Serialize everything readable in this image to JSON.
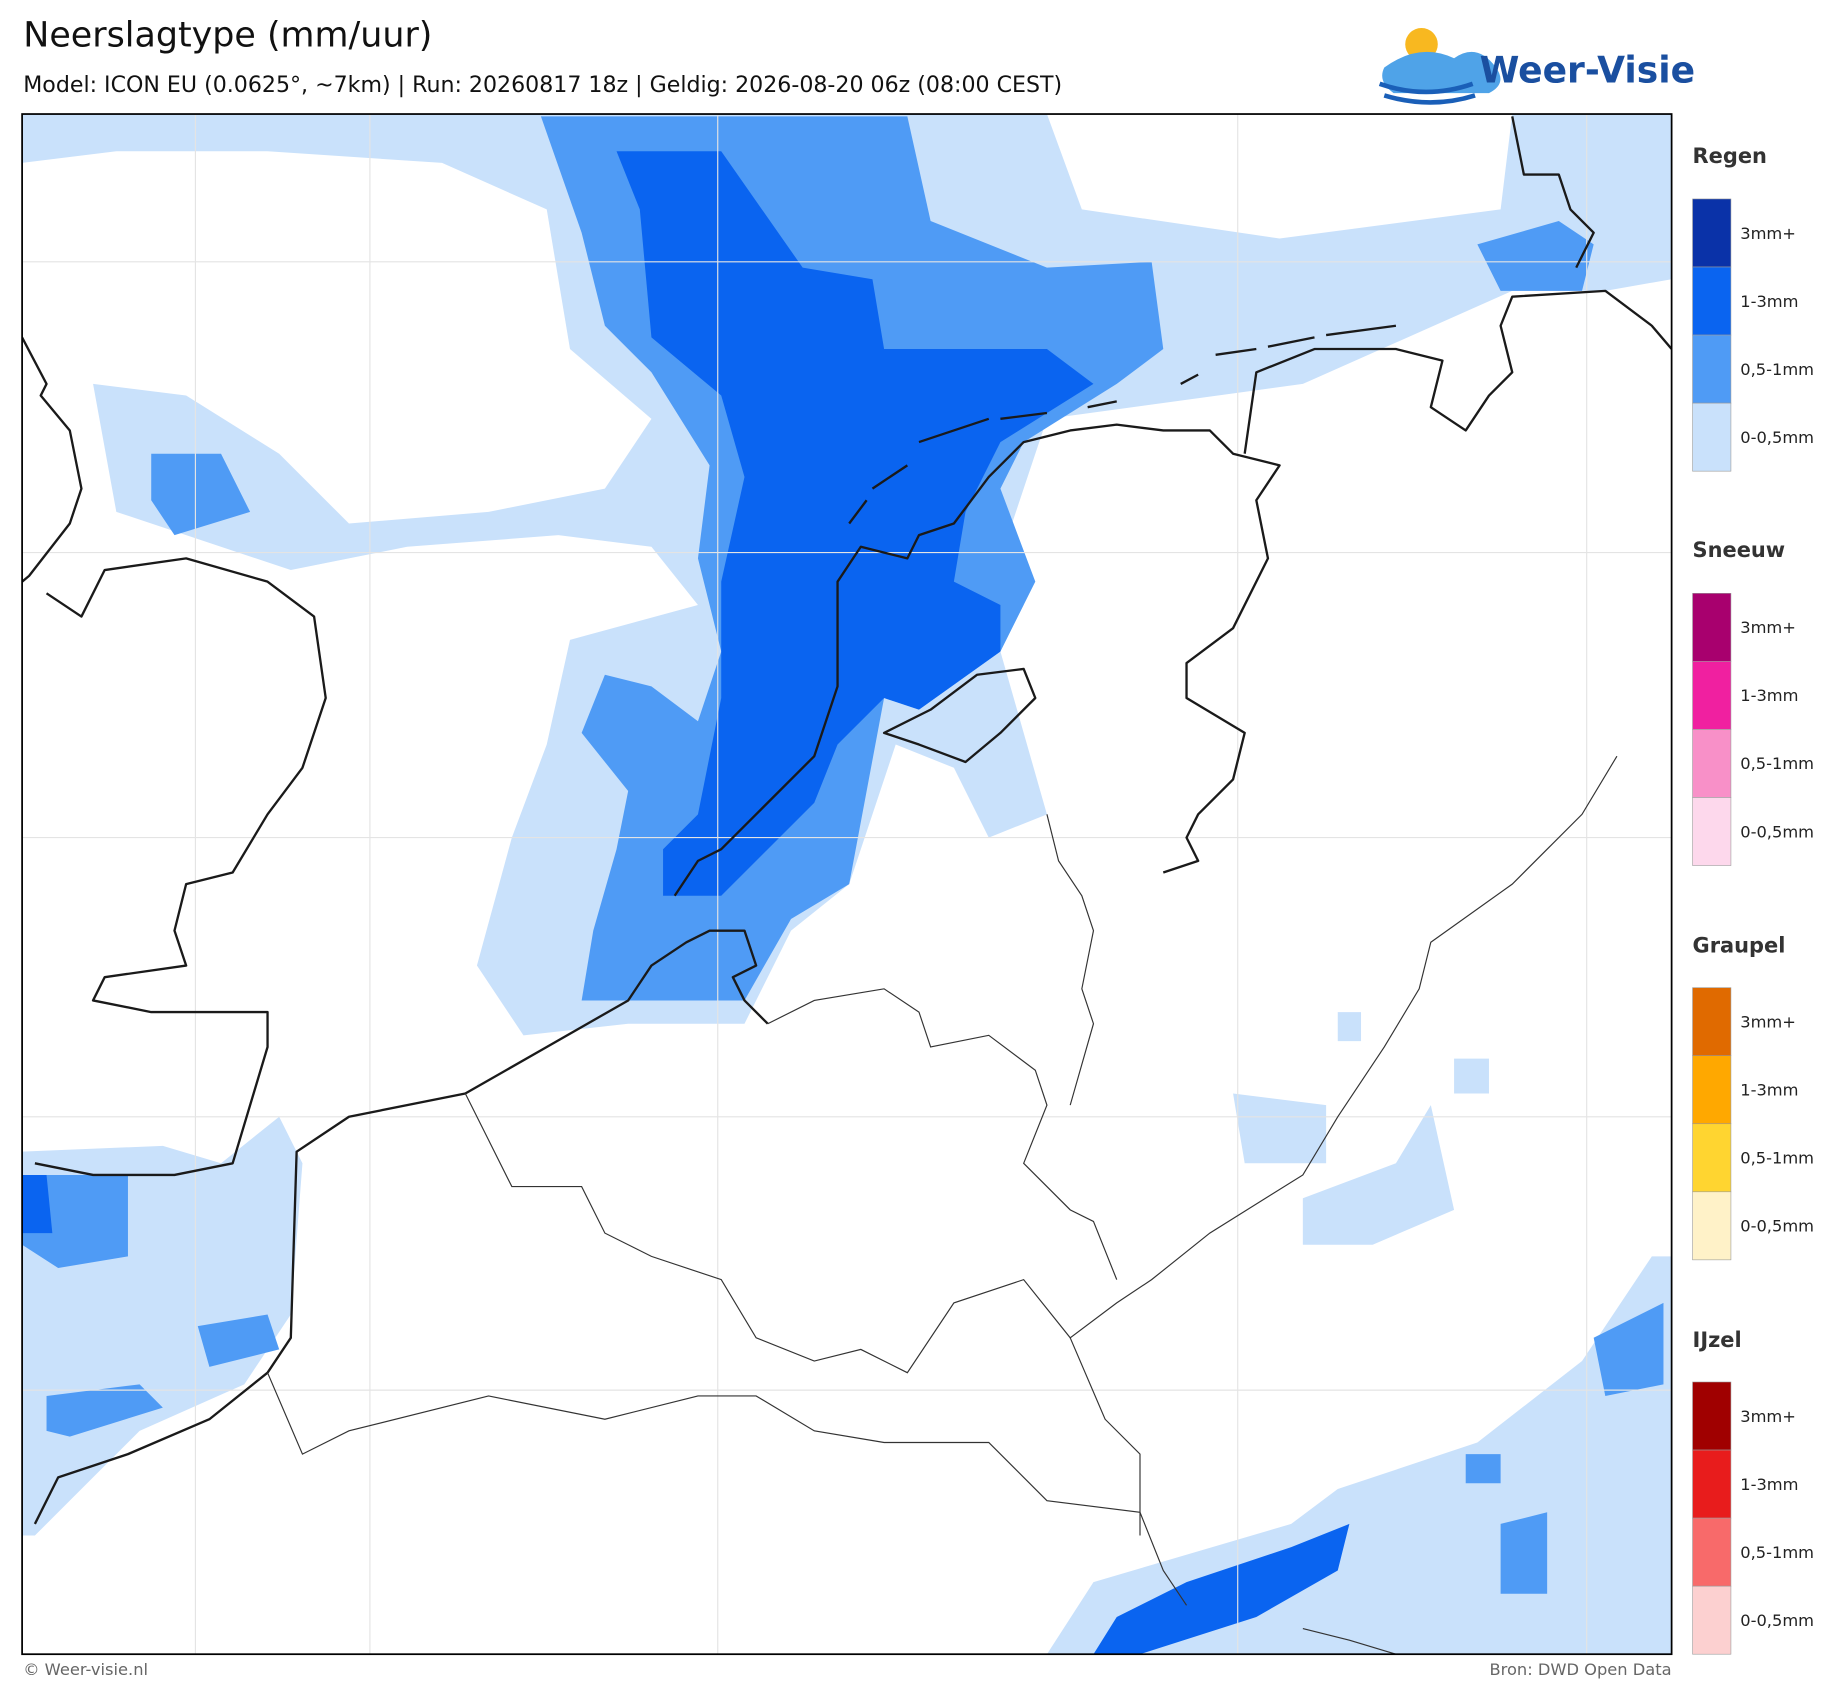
{
  "header": {
    "title": "Neerslagtype (mm/uur)",
    "subtitle": "Model: ICON EU (0.0625°, ~7km)  |  Run: 20260817 18z  |  Geldig: 2026-08-20 06z (08:00 CEST)",
    "logo": "Weer-Visie"
  },
  "legend": [
    {
      "title": "Regen",
      "items": [
        {
          "label": "3mm+",
          "color": "#0a32a8"
        },
        {
          "label": "1-3mm",
          "color": "#0a64f0"
        },
        {
          "label": "0,5-1mm",
          "color": "#4f9bf5"
        },
        {
          "label": "0-0,5mm",
          "color": "#c9e1fb"
        }
      ]
    },
    {
      "title": "Sneeuw",
      "items": [
        {
          "label": "3mm+",
          "color": "#a8006e"
        },
        {
          "label": "1-3mm",
          "color": "#f020a0"
        },
        {
          "label": "0,5-1mm",
          "color": "#f890c8"
        },
        {
          "label": "0-0,5mm",
          "color": "#fdd8ec"
        }
      ]
    },
    {
      "title": "Graupel",
      "items": [
        {
          "label": "3mm+",
          "color": "#e06a00"
        },
        {
          "label": "1-3mm",
          "color": "#ffa800"
        },
        {
          "label": "0,5-1mm",
          "color": "#ffd530"
        },
        {
          "label": "0-0,5mm",
          "color": "#fff2c8"
        }
      ]
    },
    {
      "title": "IJzel",
      "items": [
        {
          "label": "3mm+",
          "color": "#a00000"
        },
        {
          "label": "1-3mm",
          "color": "#e81c1c"
        },
        {
          "label": "0,5-1mm",
          "color": "#f86a6a"
        },
        {
          "label": "0-0,5mm",
          "color": "#fcd0d0"
        }
      ]
    }
  ],
  "footer": {
    "left": "© Weer-visie.nl",
    "right": "Bron: DWD Open Data"
  }
}
